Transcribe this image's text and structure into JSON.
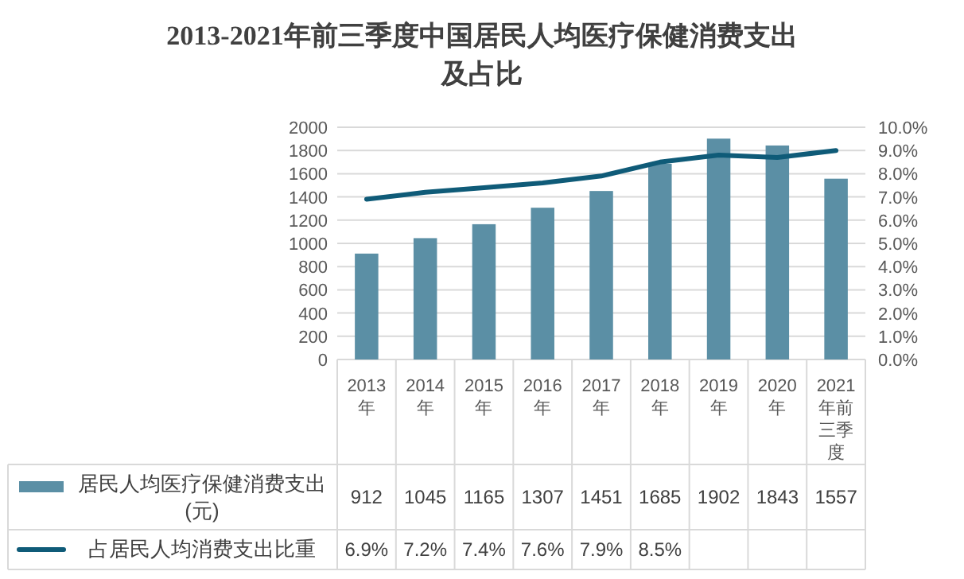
{
  "chart_data": {
    "type": "bar",
    "title": "2013-2021年前三季度中国居民人均医疗保健消费支出及占比",
    "categories": [
      "2013年",
      "2014年",
      "2015年",
      "2016年",
      "2017年",
      "2018年",
      "2019年",
      "2020年",
      "2021年前三季度"
    ],
    "series": [
      {
        "name": "居民人均医疗保健消费支出(元)",
        "color": "#5b8fa5",
        "values": [
          912,
          1045,
          1165,
          1307,
          1451,
          1685,
          1902,
          1843,
          1557
        ],
        "data_labels": true
      },
      {
        "name": "占居民人均消费支出比重",
        "type": "line",
        "axis": "y2",
        "color": "#0f5b78",
        "values": [
          6.9,
          7.2,
          7.4,
          7.6,
          7.9,
          8.5,
          8.8,
          8.7,
          9.0
        ],
        "value_labels": [
          "6.9%",
          "7.2%",
          "7.4%",
          "7.6%",
          "7.9%",
          "8.5%",
          null,
          null,
          null
        ]
      }
    ],
    "ylim": [
      0,
      2000
    ],
    "yticks": [
      0,
      200,
      400,
      600,
      800,
      1000,
      1200,
      1400,
      1600,
      1800,
      2000
    ],
    "y2lim": [
      0,
      10
    ],
    "y2ticks": [
      {
        "value": 0,
        "label": "0.0%"
      },
      {
        "value": 1,
        "label": "1.0%"
      },
      {
        "value": 2,
        "label": "2.0%"
      },
      {
        "value": 3,
        "label": "3.0%"
      },
      {
        "value": 4,
        "label": "4.0%"
      },
      {
        "value": 5,
        "label": "5.0%"
      },
      {
        "value": 6,
        "label": "6.0%"
      },
      {
        "value": 7,
        "label": "7.0%"
      },
      {
        "value": 8,
        "label": "8.0%"
      },
      {
        "value": 9,
        "label": "9.0%"
      },
      {
        "value": 10,
        "label": "10.0%"
      }
    ],
    "grid": "y",
    "legend": "bottom left"
  }
}
